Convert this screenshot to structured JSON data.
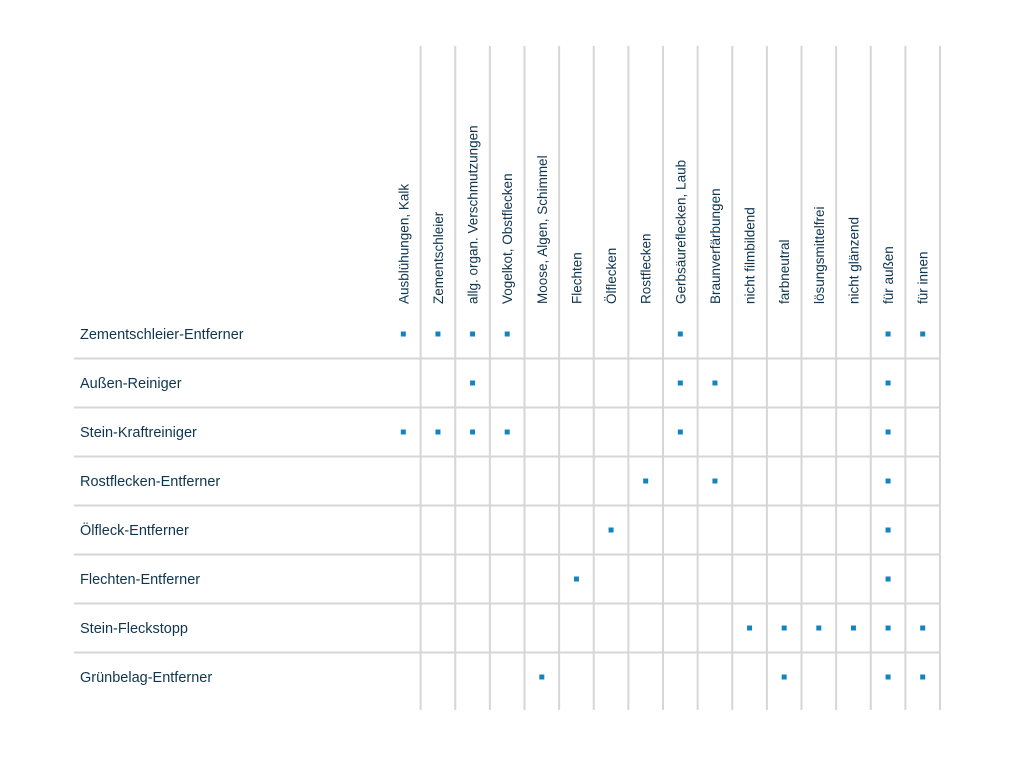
{
  "chart_data": {
    "type": "table",
    "columns": [
      "Ausblühungen, Kalk",
      "Zementschleier",
      "allg. organ. Verschmutzungen",
      "Vogelkot, Obstflecken",
      "Moose, Algen, Schimmel",
      "Flechten",
      "Ölflecken",
      "Rostflecken",
      "Gerbsäureflecken, Laub",
      "Braunverfärbungen",
      "nicht filmbildend",
      "farbneutral",
      "lösungsmittelfrei",
      "nicht glänzend",
      "für außen",
      "für innen"
    ],
    "rows": [
      {
        "label": "Zementschleier-Entferner",
        "marks": [
          1,
          1,
          1,
          1,
          0,
          0,
          0,
          0,
          1,
          0,
          0,
          0,
          0,
          0,
          1,
          1
        ]
      },
      {
        "label": "Außen-Reiniger",
        "marks": [
          0,
          0,
          1,
          0,
          0,
          0,
          0,
          0,
          1,
          1,
          0,
          0,
          0,
          0,
          1,
          0
        ]
      },
      {
        "label": "Stein-Kraftreiniger",
        "marks": [
          1,
          1,
          1,
          1,
          0,
          0,
          0,
          0,
          1,
          0,
          0,
          0,
          0,
          0,
          1,
          0
        ]
      },
      {
        "label": "Rostflecken-Entferner",
        "marks": [
          0,
          0,
          0,
          0,
          0,
          0,
          0,
          1,
          0,
          1,
          0,
          0,
          0,
          0,
          1,
          0
        ]
      },
      {
        "label": "Ölfleck-Entferner",
        "marks": [
          0,
          0,
          0,
          0,
          0,
          0,
          1,
          0,
          0,
          0,
          0,
          0,
          0,
          0,
          1,
          0
        ]
      },
      {
        "label": "Flechten-Entferner",
        "marks": [
          0,
          0,
          0,
          0,
          0,
          1,
          0,
          0,
          0,
          0,
          0,
          0,
          0,
          0,
          1,
          0
        ]
      },
      {
        "label": "Stein-Fleckstopp",
        "marks": [
          0,
          0,
          0,
          0,
          0,
          0,
          0,
          0,
          0,
          0,
          1,
          1,
          1,
          1,
          1,
          1
        ]
      },
      {
        "label": "Grünbelag-Entferner",
        "marks": [
          0,
          0,
          0,
          0,
          1,
          0,
          0,
          0,
          0,
          0,
          0,
          1,
          0,
          0,
          1,
          1
        ]
      }
    ]
  },
  "colors": {
    "text": "#0f3550",
    "marker": "#1483c1",
    "grid": "#d6d6d6"
  }
}
